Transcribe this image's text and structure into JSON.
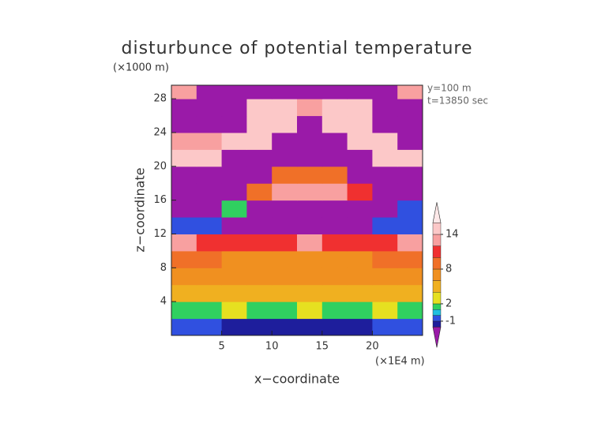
{
  "chart_data": {
    "type": "heatmap",
    "title": "disturbunce of potential temperature",
    "y_unit": "(×1000 m)",
    "x_unit": "(×1E4 m)",
    "annotations": [
      "y=100 m",
      "t=13850 sec"
    ],
    "xlabel": "x−coordinate",
    "ylabel": "z−coordinate",
    "x": [
      1.25,
      3.75,
      6.25,
      8.75,
      11.25,
      13.75,
      16.25,
      18.75,
      21.25,
      23.75
    ],
    "y": [
      1,
      3,
      5,
      7,
      9,
      11,
      13,
      15,
      17,
      19,
      21,
      23,
      25,
      27,
      29
    ],
    "cell_width": 2.5,
    "cell_height": 2,
    "values": [
      [
        -1,
        -1,
        -1.5,
        -1.5,
        -1.5,
        -1.5,
        -1.5,
        -1.5,
        -1,
        -1
      ],
      [
        1,
        1.5,
        2,
        1.5,
        1.5,
        2,
        1.5,
        1.5,
        2,
        1
      ],
      [
        4,
        5,
        5,
        4.5,
        5,
        5,
        4.5,
        5,
        5,
        4
      ],
      [
        7,
        6.5,
        6,
        6,
        6,
        6,
        6,
        6,
        6.5,
        7
      ],
      [
        9,
        8,
        7.5,
        7,
        7,
        7,
        7,
        7.5,
        8,
        9
      ],
      [
        13,
        11,
        10.5,
        10.5,
        11,
        12,
        10.5,
        10.5,
        11,
        13
      ],
      [
        -1,
        -0.5,
        -3,
        -3,
        -3,
        -3,
        -3,
        -3,
        -1,
        -0.5
      ],
      [
        -3,
        -3,
        1,
        -3,
        -3,
        -3,
        -3,
        -3,
        -3,
        -1
      ],
      [
        -3,
        -3,
        -3,
        8,
        13,
        13,
        12,
        10,
        -3,
        -3
      ],
      [
        -3,
        -3,
        -3,
        -3,
        8,
        9,
        9,
        -3,
        -3,
        -3
      ],
      [
        15,
        14,
        -3,
        -3,
        -3,
        -3,
        -3,
        -3,
        14,
        15
      ],
      [
        13,
        13,
        15,
        15,
        -3,
        -3,
        -3,
        15,
        15,
        -3
      ],
      [
        -3,
        -3,
        -3,
        15,
        15,
        -3,
        15,
        15,
        -3,
        -3
      ],
      [
        -3,
        -3,
        -3,
        15,
        15,
        12,
        15,
        15,
        -3,
        -3
      ],
      [
        12,
        -3,
        -3,
        -3,
        -3,
        -3,
        -3,
        -3,
        -3,
        13
      ]
    ],
    "xlim": [
      0,
      25
    ],
    "ylim": [
      0,
      29.6
    ],
    "xticks": [
      5,
      10,
      15,
      20
    ],
    "yticks": [
      4,
      8,
      12,
      16,
      20,
      24,
      28
    ],
    "colorbar": {
      "levels": [
        -2,
        -1,
        0,
        1,
        2,
        4,
        6,
        8,
        10,
        12,
        14,
        16
      ],
      "colors": [
        "#1e1e9c",
        "#3050e0",
        "#20c0e0",
        "#30d060",
        "#e6e020",
        "#f0b020",
        "#f09020",
        "#f07028",
        "#f03030",
        "#f8a0a0",
        "#fcc8c8"
      ],
      "under_color": "#9a1aa8",
      "over_color": "#fde8e8",
      "ticks": [
        -1,
        2,
        8,
        14
      ]
    }
  }
}
